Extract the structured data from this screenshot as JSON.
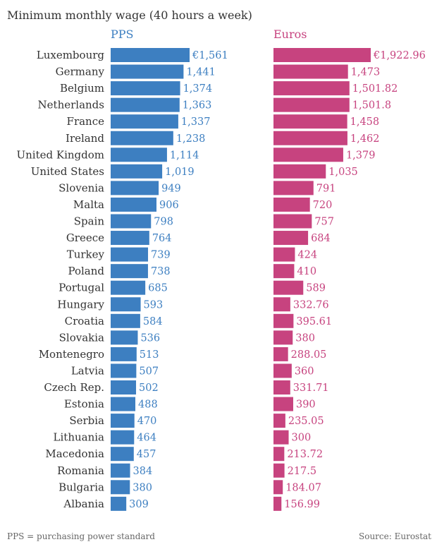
{
  "chart_data": {
    "type": "bar",
    "orientation": "horizontal",
    "title": "Minimum monthly wage (40 hours a week)",
    "categories": [
      "Luxembourg",
      "Germany",
      "Belgium",
      "Netherlands",
      "France",
      "Ireland",
      "United Kingdom",
      "United States",
      "Slovenia",
      "Malta",
      "Spain",
      "Greece",
      "Turkey",
      "Poland",
      "Portugal",
      "Hungary",
      "Croatia",
      "Slovakia",
      "Montenegro",
      "Latvia",
      "Czech Rep.",
      "Estonia",
      "Serbia",
      "Lithuania",
      "Macedonia",
      "Romania",
      "Bulgaria",
      "Albania"
    ],
    "series": [
      {
        "name": "PPS",
        "color": "#3d7fc1",
        "values": [
          1561,
          1441,
          1374,
          1363,
          1337,
          1238,
          1114,
          1019,
          949,
          906,
          798,
          764,
          739,
          738,
          685,
          593,
          584,
          536,
          513,
          507,
          502,
          488,
          470,
          464,
          457,
          384,
          380,
          309
        ],
        "labels": [
          "€1,561",
          "1,441",
          "1,374",
          "1,363",
          "1,337",
          "1,238",
          "1,114",
          "1,019",
          "949",
          "906",
          "798",
          "764",
          "739",
          "738",
          "685",
          "593",
          "584",
          "536",
          "513",
          "507",
          "502",
          "488",
          "470",
          "464",
          "457",
          "384",
          "380",
          "309"
        ]
      },
      {
        "name": "Euros",
        "color": "#c7437f",
        "values": [
          1922.96,
          1473,
          1501.82,
          1501.8,
          1458,
          1462,
          1379,
          1035,
          791,
          720,
          757,
          684,
          424,
          410,
          589,
          332.76,
          395.61,
          380,
          288.05,
          360,
          331.71,
          390,
          235.05,
          300,
          213.72,
          217.5,
          184.07,
          156.99
        ],
        "labels": [
          "€1,922.96",
          "1,473",
          "1,501.82",
          "1,501.8",
          "1,458",
          "1,462",
          "1,379",
          "1,035",
          "791",
          "720",
          "757",
          "684",
          "424",
          "410",
          "589",
          "332.76",
          "395.61",
          "380",
          "288.05",
          "360",
          "331.71",
          "390",
          "235.05",
          "300",
          "213.72",
          "217.5",
          "184.07",
          "156.99"
        ]
      }
    ],
    "grid": false
  },
  "footer": {
    "note": "PPS = purchasing power standard",
    "source": "Source: Eurostat"
  }
}
